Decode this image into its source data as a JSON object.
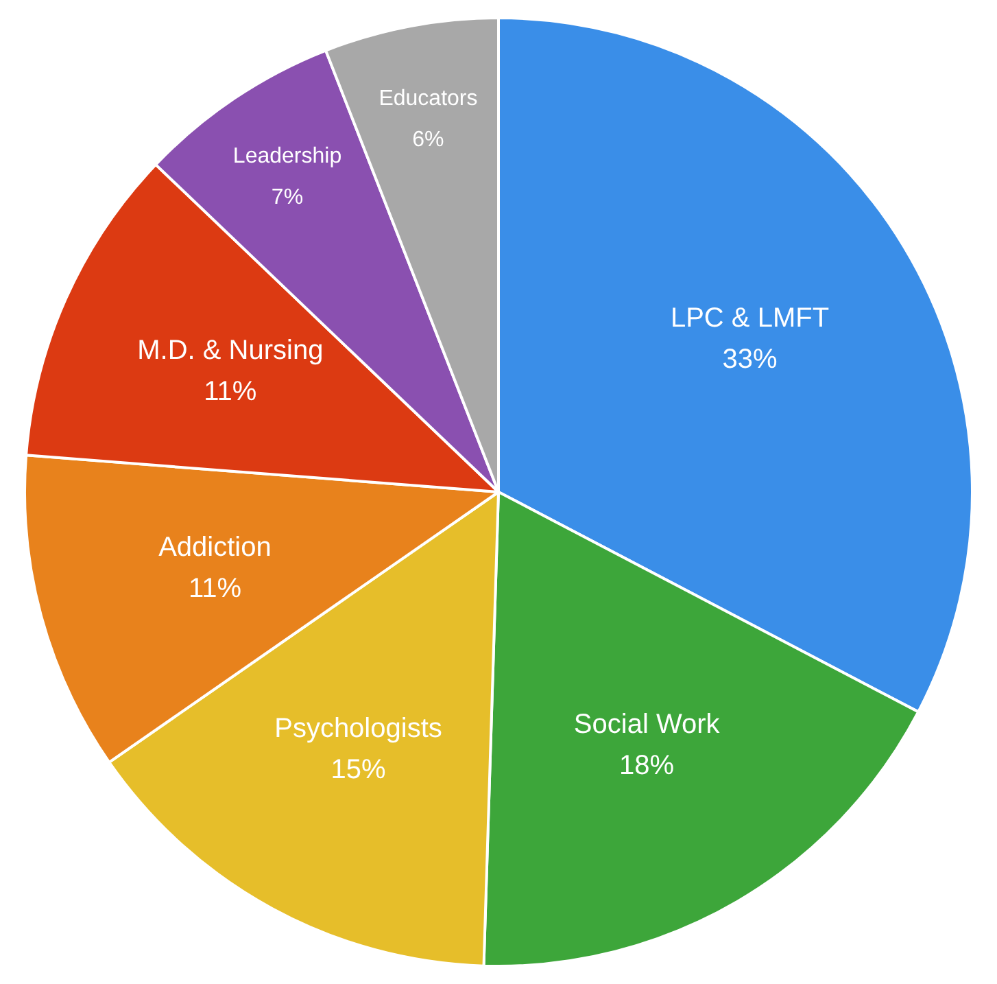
{
  "chart_data": {
    "type": "pie",
    "categories": [
      "LPC & LMFT",
      "Social Work",
      "Psychologists",
      "Addiction",
      "M.D. & Nursing",
      "Leadership",
      "Educators"
    ],
    "values": [
      33,
      18,
      15,
      11,
      11,
      7,
      6
    ],
    "value_labels": [
      "33%",
      "18%",
      "15%",
      "11%",
      "11%",
      "7%",
      "6%"
    ],
    "colors": [
      "#3a8ee8",
      "#3da63a",
      "#e6be2a",
      "#e8821c",
      "#dc3a12",
      "#8a50b0",
      "#a8a8a8"
    ],
    "legend": false
  }
}
